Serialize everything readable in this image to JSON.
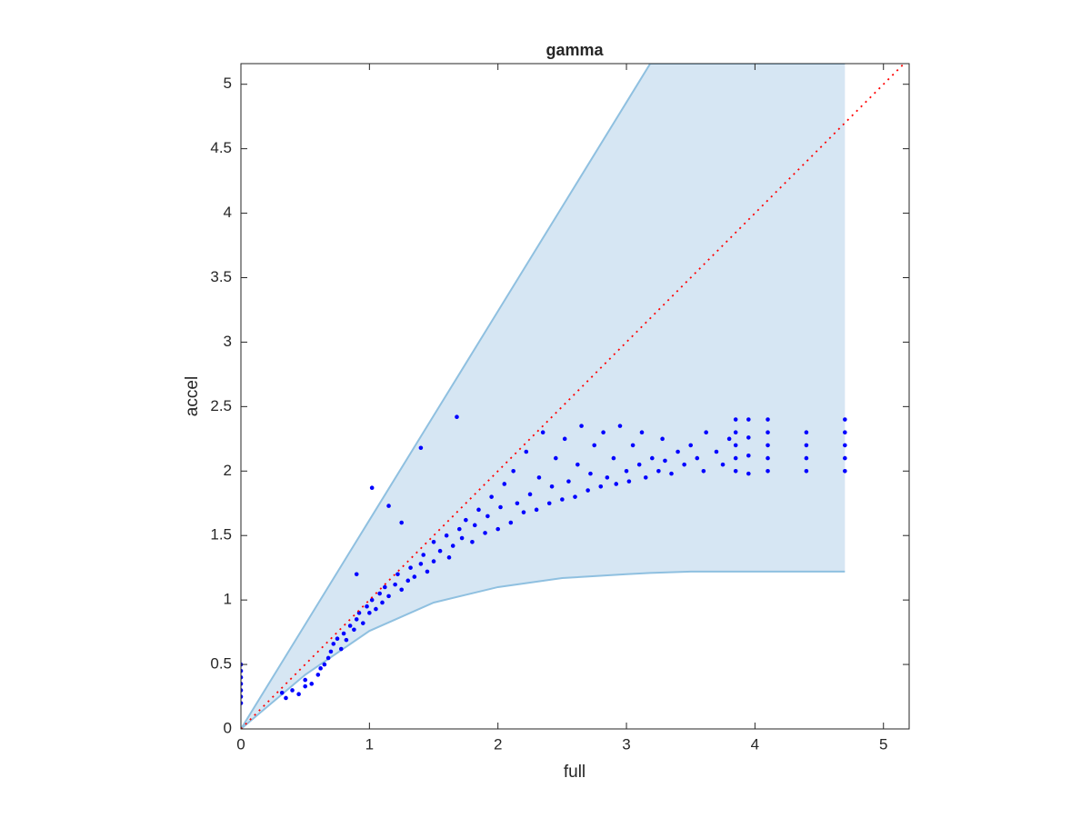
{
  "chart_data": {
    "type": "scatter",
    "title": "gamma",
    "x_label": "full",
    "y_label": "accel",
    "xlim": [
      0,
      5.2
    ],
    "ylim": [
      0,
      5.16
    ],
    "xticks": [
      0,
      1,
      2,
      3,
      4,
      5
    ],
    "yticks": [
      0,
      0.5,
      1,
      1.5,
      2,
      2.5,
      3,
      3.5,
      4,
      4.5,
      5
    ],
    "band": {
      "color": "#d6e6f3",
      "edge_color": "#8fc0e0",
      "x": [
        0,
        0.5,
        1,
        1.5,
        2,
        2.5,
        3,
        3.185,
        3.5,
        4,
        4.7
      ],
      "upper": [
        0,
        0.81,
        1.62,
        2.43,
        3.24,
        4.05,
        4.86,
        5.16,
        5.16,
        5.16,
        5.16
      ],
      "lower": [
        0,
        0.42,
        0.76,
        0.98,
        1.1,
        1.17,
        1.2,
        1.21,
        1.22,
        1.22,
        1.22
      ]
    },
    "reference_line": {
      "color": "#ff0000",
      "x": [
        0,
        5.2
      ],
      "y": [
        0,
        5.2
      ]
    },
    "series": [
      {
        "color": "#0000ff",
        "x": [
          0,
          0,
          0,
          0,
          0,
          0,
          0,
          0.32,
          0.35,
          0.4,
          0.45,
          0.5,
          0.5,
          0.55,
          0.6,
          0.62,
          0.65,
          0.68,
          0.7,
          0.72,
          0.75,
          0.78,
          0.8,
          0.82,
          0.85,
          0.88,
          0.9,
          0.92,
          0.95,
          0.98,
          1.0,
          1.02,
          1.05,
          1.08,
          1.1,
          1.12,
          1.15,
          1.2,
          1.22,
          1.25,
          1.3,
          1.32,
          1.35,
          1.4,
          1.42,
          1.45,
          1.5,
          1.5,
          1.55,
          1.6,
          1.62,
          1.65,
          1.7,
          1.72,
          1.75,
          1.8,
          1.82,
          1.85,
          1.9,
          1.92,
          1.95,
          2.0,
          2.02,
          2.05,
          2.1,
          2.12,
          2.15,
          2.2,
          2.22,
          2.25,
          2.3,
          2.32,
          2.35,
          2.4,
          2.42,
          2.45,
          2.5,
          2.52,
          2.55,
          2.6,
          2.62,
          2.65,
          2.7,
          2.72,
          2.75,
          2.8,
          2.82,
          2.85,
          2.9,
          2.92,
          2.95,
          3.0,
          3.02,
          3.05,
          3.1,
          3.12,
          3.15,
          3.2,
          3.25,
          3.28,
          3.3,
          3.35,
          3.4,
          3.45,
          3.5,
          3.55,
          3.6,
          3.62,
          3.7,
          3.75,
          3.8,
          3.85,
          3.85,
          3.85,
          3.85,
          3.85,
          3.95,
          3.95,
          3.95,
          3.95,
          4.1,
          4.1,
          4.1,
          4.1,
          4.1,
          4.4,
          4.4,
          4.4,
          4.4,
          4.7,
          4.7,
          4.7,
          4.7,
          4.7,
          1.02,
          1.4,
          1.68,
          1.15,
          0.9,
          1.25
        ],
        "values": [
          0.2,
          0.25,
          0.3,
          0.35,
          0.4,
          0.45,
          0.5,
          0.28,
          0.24,
          0.3,
          0.27,
          0.33,
          0.38,
          0.35,
          0.42,
          0.47,
          0.5,
          0.55,
          0.6,
          0.66,
          0.7,
          0.62,
          0.74,
          0.69,
          0.8,
          0.77,
          0.85,
          0.9,
          0.82,
          0.95,
          0.9,
          1.0,
          0.93,
          1.05,
          0.98,
          1.1,
          1.03,
          1.12,
          1.2,
          1.08,
          1.15,
          1.25,
          1.18,
          1.28,
          1.35,
          1.22,
          1.3,
          1.45,
          1.38,
          1.5,
          1.33,
          1.42,
          1.55,
          1.48,
          1.62,
          1.45,
          1.58,
          1.7,
          1.52,
          1.65,
          1.8,
          1.55,
          1.72,
          1.9,
          1.6,
          2.0,
          1.75,
          1.68,
          2.15,
          1.82,
          1.7,
          1.95,
          2.3,
          1.75,
          1.88,
          2.1,
          1.78,
          2.25,
          1.92,
          1.8,
          2.05,
          2.35,
          1.85,
          1.98,
          2.2,
          1.88,
          2.3,
          1.95,
          2.1,
          1.9,
          2.35,
          2.0,
          1.92,
          2.2,
          2.05,
          2.3,
          1.95,
          2.1,
          2.0,
          2.25,
          2.08,
          1.98,
          2.15,
          2.05,
          2.2,
          2.1,
          2.0,
          2.3,
          2.15,
          2.05,
          2.25,
          2.0,
          2.1,
          2.2,
          2.3,
          2.4,
          1.98,
          2.12,
          2.26,
          2.4,
          2.0,
          2.1,
          2.2,
          2.3,
          2.4,
          2.0,
          2.1,
          2.2,
          2.3,
          2.0,
          2.1,
          2.2,
          2.3,
          2.4,
          1.87,
          2.18,
          2.42,
          1.73,
          1.2,
          1.6
        ]
      }
    ]
  }
}
